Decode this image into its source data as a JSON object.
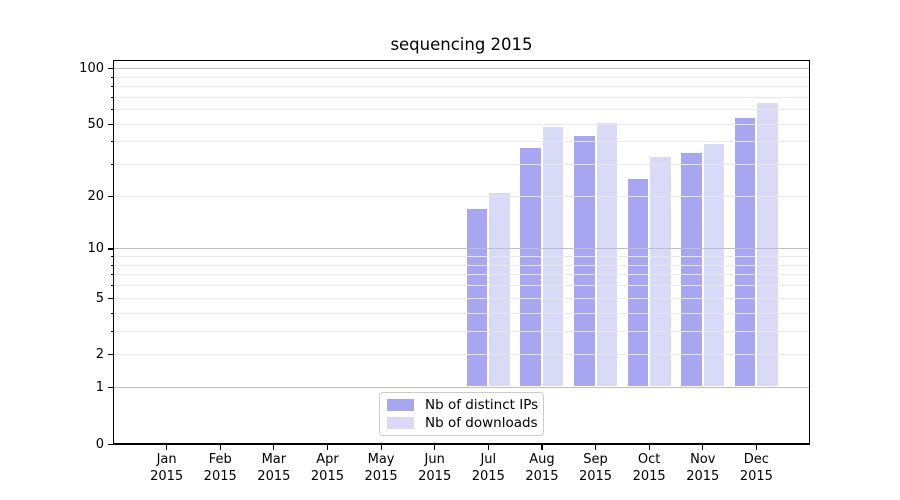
{
  "title": "sequencing 2015",
  "legend": {
    "items": [
      {
        "label": "Nb of distinct IPs",
        "color": "#a6a6f1"
      },
      {
        "label": "Nb of downloads",
        "color": "#d9d9f8"
      }
    ]
  },
  "y_axis": {
    "tick_values": [
      100,
      50,
      20,
      10,
      5,
      2,
      1,
      0
    ],
    "tick_labels": [
      "100",
      "50",
      "20",
      "10",
      "5",
      "2",
      "1",
      "0"
    ],
    "major_grid_values": [
      1,
      10,
      100
    ],
    "minor_grid_values": [
      2,
      3,
      4,
      5,
      6,
      7,
      8,
      9,
      20,
      30,
      40,
      50,
      60,
      70,
      80,
      90
    ]
  },
  "x_axis": {
    "months": [
      "Jan",
      "Feb",
      "Mar",
      "Apr",
      "May",
      "Jun",
      "Jul",
      "Aug",
      "Sep",
      "Oct",
      "Nov",
      "Dec"
    ],
    "year": "2015"
  },
  "colors": {
    "major_grid": "#c0c0c0",
    "minor_grid": "#e8e8e8",
    "spine": "#000000",
    "background": "#ffffff"
  },
  "chart_data": {
    "type": "bar",
    "title": "sequencing 2015",
    "categories": [
      "Jan 2015",
      "Feb 2015",
      "Mar 2015",
      "Apr 2015",
      "May 2015",
      "Jun 2015",
      "Jul 2015",
      "Aug 2015",
      "Sep 2015",
      "Oct 2015",
      "Nov 2015",
      "Dec 2015"
    ],
    "series": [
      {
        "name": "Nb of distinct IPs",
        "color": "#a6a6f1",
        "values": [
          0,
          0,
          0,
          0,
          0,
          0,
          17,
          37,
          43,
          25,
          35,
          54
        ]
      },
      {
        "name": "Nb of downloads",
        "color": "#d9d9f8",
        "values": [
          0,
          0,
          0,
          0,
          0,
          0,
          21,
          48,
          51,
          33,
          39,
          65
        ]
      }
    ],
    "xlabel": "",
    "ylabel": "",
    "yscale": "log10(1+v)",
    "y_ticks": [
      0,
      1,
      2,
      5,
      10,
      20,
      50,
      100
    ],
    "ylim": [
      0,
      112
    ],
    "grid": true,
    "grid_above_bars": true,
    "legend_position": "lower center"
  }
}
